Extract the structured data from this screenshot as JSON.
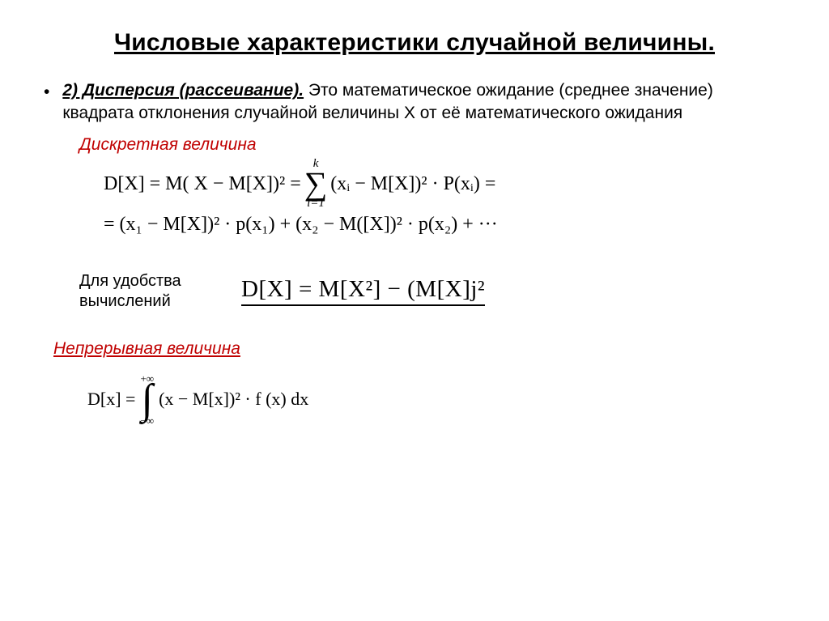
{
  "colors": {
    "text": "#000000",
    "accent_red": "#c00000",
    "background": "#ffffff"
  },
  "fonts": {
    "body": "Arial",
    "math": "Cambria Math / Times New Roman",
    "title_size_pt": 30,
    "body_size_pt": 21,
    "formula_size_pt": 24,
    "boxed_formula_size_pt": 29
  },
  "title": "Числовые характеристики  случайной величины.",
  "definition": {
    "lead": "2)  Дисперсия (рассеивание).",
    "rest": "  Это математическое ожидание (среднее значение) квадрата отклонения случайной величины Х  от её математического ожидания"
  },
  "discrete_label": "Дискретная  величина",
  "formula1": {
    "line1_left": "D[X]  = M(  X  − M[X])² = ",
    "sum_upper": "k",
    "sum_lower": "i=1",
    "line1_right": "(xᵢ − M[X])² · P(xᵢ) =",
    "line2": "= (x₁ − M[X])² · p(x₁) + (x₂ − M([X])² · p(x₂) + ···"
  },
  "convenience": {
    "label_line1": "Для удобства",
    "label_line2": "вычислений",
    "formula": "D[X] = M[X²] − (M[X]j²"
  },
  "continuous_label": "Непрерывная  величина",
  "formula2": {
    "left": "D[x] = ",
    "int_upper": "+∞",
    "int_lower": "−∞",
    "right": "(x − M[x])² · f  (x) dx"
  }
}
